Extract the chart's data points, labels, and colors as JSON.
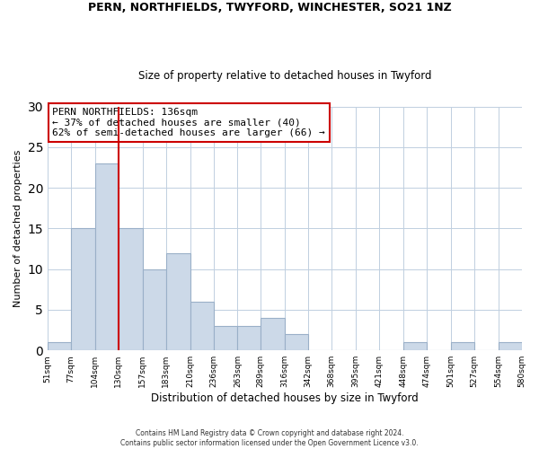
{
  "title1": "PERN, NORTHFIELDS, TWYFORD, WINCHESTER, SO21 1NZ",
  "title2": "Size of property relative to detached houses in Twyford",
  "xlabel": "Distribution of detached houses by size in Twyford",
  "ylabel": "Number of detached properties",
  "annotation_line1": "PERN NORTHFIELDS: 136sqm",
  "annotation_line2": "← 37% of detached houses are smaller (40)",
  "annotation_line3": "62% of semi-detached houses are larger (66) →",
  "bar_edges": [
    51,
    77,
    104,
    130,
    157,
    183,
    210,
    236,
    263,
    289,
    316,
    342,
    368,
    395,
    421,
    448,
    474,
    501,
    527,
    554,
    580
  ],
  "bar_heights": [
    1,
    15,
    23,
    15,
    10,
    12,
    6,
    3,
    3,
    4,
    2,
    0,
    0,
    0,
    0,
    1,
    0,
    1,
    0,
    1
  ],
  "bar_color": "#ccd9e8",
  "bar_edge_color": "#9ab0c8",
  "vline_x": 130,
  "vline_color": "#cc0000",
  "ylim": [
    0,
    30
  ],
  "yticks": [
    0,
    5,
    10,
    15,
    20,
    25,
    30
  ],
  "footer_line1": "Contains HM Land Registry data © Crown copyright and database right 2024.",
  "footer_line2": "Contains public sector information licensed under the Open Government Licence v3.0.",
  "background_color": "#ffffff",
  "grid_color": "#c0cfe0"
}
